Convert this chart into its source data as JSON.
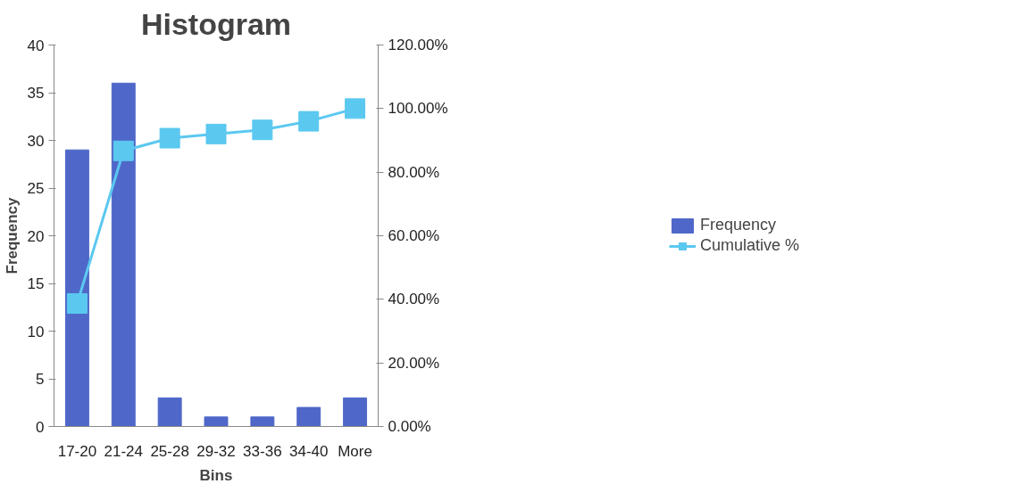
{
  "chart_data": {
    "type": "bar",
    "title": "Histogram",
    "xlabel": "Bins",
    "ylabel": "Frequency",
    "categories": [
      "17-20",
      "21-24",
      "25-28",
      "29-32",
      "33-36",
      "34-40",
      "More"
    ],
    "series": [
      {
        "name": "Frequency",
        "color": "#4f67c8",
        "values": [
          29,
          36,
          3,
          1,
          1,
          2,
          3
        ]
      },
      {
        "name": "Cumulative %",
        "type": "line",
        "axis": "y2",
        "color": "#5bc8f0",
        "values": [
          38.7,
          86.7,
          90.7,
          92,
          93.3,
          96,
          100
        ]
      }
    ],
    "ylim": [
      0,
      40
    ],
    "yticks": [
      0,
      5,
      10,
      15,
      20,
      25,
      30,
      35,
      40
    ],
    "y2lim": [
      0,
      120
    ],
    "y2ticks": [
      {
        "value": 0,
        "label": "0.00%"
      },
      {
        "value": 20,
        "label": "20.00%"
      },
      {
        "value": 40,
        "label": "40.00%"
      },
      {
        "value": 60,
        "label": "60.00%"
      },
      {
        "value": 80,
        "label": "80.00%"
      },
      {
        "value": 100,
        "label": "100.00%"
      },
      {
        "value": 120,
        "label": "120.00%"
      }
    ],
    "marker": "square",
    "grid": false,
    "legend": "right"
  }
}
